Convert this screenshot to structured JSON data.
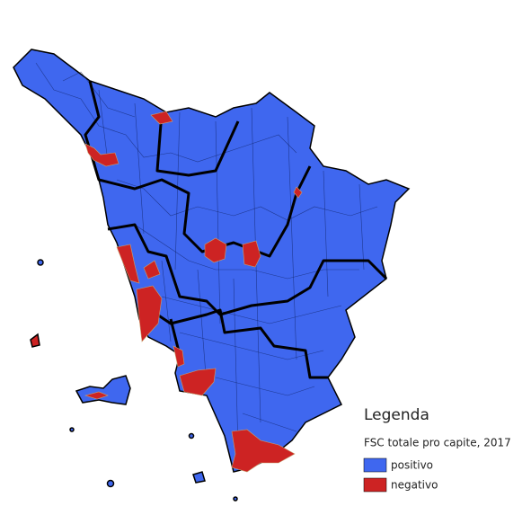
{
  "legend": {
    "title": "Legenda",
    "subtitle": "FSC totale pro capite, 2017",
    "items": [
      {
        "label": "positivo",
        "color": "#3f67ef"
      },
      {
        "label": "negativo",
        "color": "#cd2323"
      }
    ]
  }
}
